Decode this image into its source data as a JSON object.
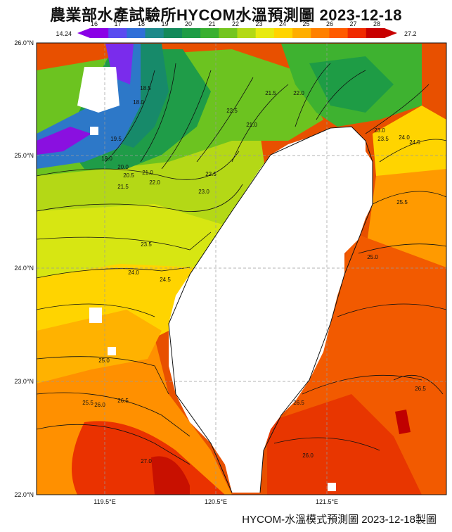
{
  "title": "農業部水產試驗所HYCOM水溫預測圖 2023-12-18",
  "footer": "HYCOM-水溫模式預測圖 2023-12-18製圖",
  "colorbar": {
    "min_label": "14.24",
    "max_label": "27.2",
    "ticks": [
      "16",
      "17",
      "18",
      "19",
      "20",
      "21",
      "22",
      "23",
      "24",
      "25",
      "26",
      "27",
      "28"
    ],
    "colors": [
      "#8a00e6",
      "#5a4bf0",
      "#2f6fd8",
      "#1d8a8a",
      "#138a5a",
      "#1e9c45",
      "#39b030",
      "#74c51f",
      "#b3d915",
      "#e8ea10",
      "#ffd400",
      "#ffae00",
      "#ff8000",
      "#ff5a00",
      "#f02a00",
      "#c80000"
    ]
  },
  "axes": {
    "lat_labels": [
      "26.0°N",
      "25.0°N",
      "24.0°N",
      "23.0°N",
      "22.0°N"
    ],
    "lon_labels": [
      "119.5°E",
      "120.5°E",
      "121.5°E"
    ]
  },
  "contour_labels": [
    "18.5",
    "18.0",
    "19.5",
    "19.0",
    "20.0",
    "20.5",
    "21.0",
    "21.5",
    "22.0",
    "22.5",
    "23.0",
    "23.5",
    "24.0",
    "24.5",
    "25.0",
    "25.5",
    "26.0",
    "26.5",
    "27.0",
    "21.5",
    "21.0",
    "22.0",
    "22.5",
    "23.0",
    "23.5",
    "24.0",
    "24.5",
    "25.5",
    "25.0",
    "26.0",
    "26.5",
    "26.5"
  ]
}
